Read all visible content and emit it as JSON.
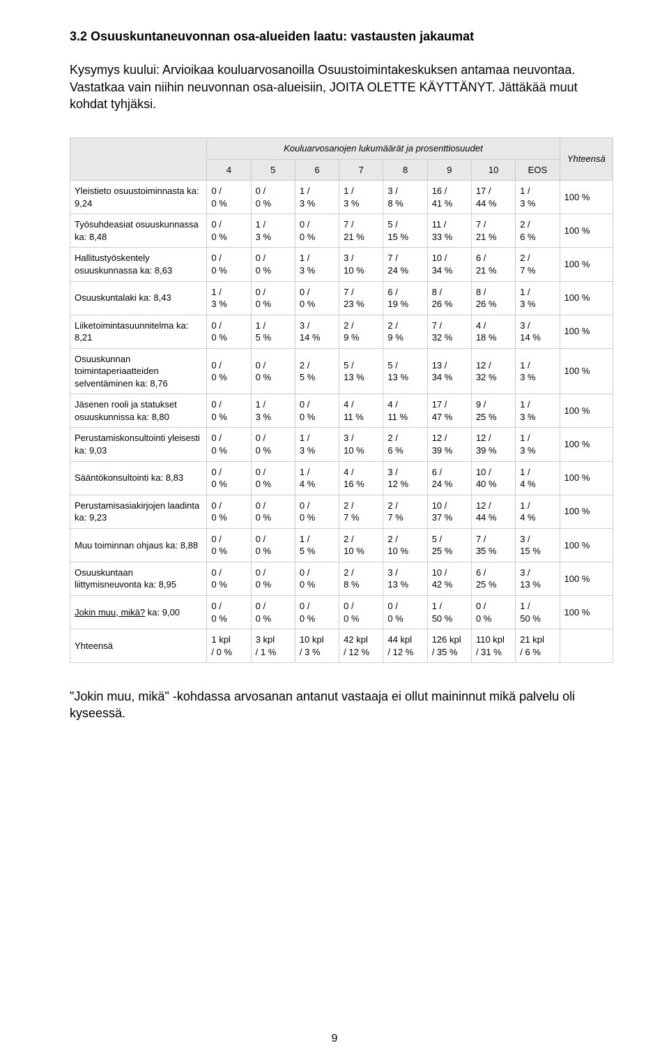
{
  "section_title": "3.2 Osuuskuntaneuvonnan osa-alueiden laatu: vastausten jakaumat",
  "intro": "Kysymys kuului: Arvioikaa kouluarvosanoilla Osuustoimintakeskuksen antamaa neuvontaa. Vastatkaa vain niihin neuvonnan osa-alueisiin, JOITA OLETTE KÄYTTÄNYT. Jättäkää muut kohdat tyhjäksi.",
  "table": {
    "group_header": "Kouluarvosanojen lukumäärät ja prosenttiosuudet",
    "total_header": "Yhteensä",
    "columns": [
      "4",
      "5",
      "6",
      "7",
      "8",
      "9",
      "10",
      "EOS"
    ],
    "rows": [
      {
        "label": "Yleistieto osuustoiminnasta ka: 9,24",
        "cells": [
          "0 /\n0 %",
          "0 /\n0 %",
          "1 /\n3 %",
          "1 /\n3 %",
          "3 /\n8 %",
          "16 /\n41 %",
          "17 /\n44 %",
          "1 /\n3 %"
        ],
        "total": "100 %"
      },
      {
        "label": "Työsuhdeasiat osuuskunnassa ka: 8,48",
        "cells": [
          "0 /\n0 %",
          "1 /\n3 %",
          "0 /\n0 %",
          "7 /\n21 %",
          "5 /\n15 %",
          "11 /\n33 %",
          "7 /\n21 %",
          "2 /\n6 %"
        ],
        "total": "100 %"
      },
      {
        "label": "Hallitustyöskentely osuuskunnassa ka: 8,63",
        "cells": [
          "0 /\n0 %",
          "0 /\n0 %",
          "1 /\n3 %",
          "3 /\n10 %",
          "7 /\n24 %",
          "10 /\n34 %",
          "6 /\n21 %",
          "2 /\n7 %"
        ],
        "total": "100 %"
      },
      {
        "label": "Osuuskuntalaki ka: 8,43",
        "cells": [
          "1 /\n3 %",
          "0 /\n0 %",
          "0 /\n0 %",
          "7 /\n23 %",
          "6 /\n19 %",
          "8 /\n26 %",
          "8 /\n26 %",
          "1 /\n3 %"
        ],
        "total": "100 %"
      },
      {
        "label": "Liiketoimintasuunnitelma ka: 8,21",
        "cells": [
          "0 /\n0 %",
          "1 /\n5 %",
          "3 /\n14 %",
          "2 /\n9 %",
          "2 /\n9 %",
          "7 /\n32 %",
          "4 /\n18 %",
          "3 /\n14 %"
        ],
        "total": "100 %"
      },
      {
        "label": "Osuuskunnan toimintaperiaatteiden selventäminen ka: 8,76",
        "cells": [
          "0 /\n0 %",
          "0 /\n0 %",
          "2 /\n5 %",
          "5 /\n13 %",
          "5 /\n13 %",
          "13 /\n34 %",
          "12 /\n32 %",
          "1 /\n3 %"
        ],
        "total": "100 %"
      },
      {
        "label": "Jäsenen rooli ja statukset osuuskunnissa ka: 8,80",
        "cells": [
          "0 /\n0 %",
          "1 /\n3 %",
          "0 /\n0 %",
          "4 /\n11 %",
          "4 /\n11 %",
          "17 /\n47 %",
          "9 /\n25 %",
          "1 /\n3 %"
        ],
        "total": "100 %"
      },
      {
        "label": "Perustamiskonsultointi yleisesti ka: 9,03",
        "cells": [
          "0 /\n0 %",
          "0 /\n0 %",
          "1 /\n3 %",
          "3 /\n10 %",
          "2 /\n6 %",
          "12 /\n39 %",
          "12 /\n39 %",
          "1 /\n3 %"
        ],
        "total": "100 %"
      },
      {
        "label": "Sääntökonsultointi ka: 8,83",
        "cells": [
          "0 /\n0 %",
          "0 /\n0 %",
          "1 /\n4 %",
          "4 /\n16 %",
          "3 /\n12 %",
          "6 /\n24 %",
          "10 /\n40 %",
          "1 /\n4 %"
        ],
        "total": "100 %"
      },
      {
        "label": "Perustamisasiakirjojen laadinta ka: 9,23",
        "cells": [
          "0 /\n0 %",
          "0 /\n0 %",
          "0 /\n0 %",
          "2 /\n7 %",
          "2 /\n7 %",
          "10 /\n37 %",
          "12 /\n44 %",
          "1 /\n4 %"
        ],
        "total": "100 %"
      },
      {
        "label": "Muu toiminnan ohjaus ka: 8,88",
        "cells": [
          "0 /\n0 %",
          "0 /\n0 %",
          "1 /\n5 %",
          "2 /\n10 %",
          "2 /\n10 %",
          "5 /\n25 %",
          "7 /\n35 %",
          "3 /\n15 %"
        ],
        "total": "100 %"
      },
      {
        "label": "Osuuskuntaan liittymisneuvonta ka: 8,95",
        "cells": [
          "0 /\n0 %",
          "0 /\n0 %",
          "0 /\n0 %",
          "2 /\n8 %",
          "3 /\n13 %",
          "10 /\n42 %",
          "6 /\n25 %",
          "3 /\n13 %"
        ],
        "total": "100 %"
      },
      {
        "label_pre": "Jokin muu, mikä?",
        "label_post": " ka: 9,00",
        "underline": true,
        "cells": [
          "0 /\n0 %",
          "0 /\n0 %",
          "0 /\n0 %",
          "0 /\n0 %",
          "0 /\n0 %",
          "1 /\n50 %",
          "0 /\n0 %",
          "1 /\n50 %"
        ],
        "total": "100 %"
      }
    ],
    "summary": {
      "label": "Yhteensä",
      "cells": [
        "1 kpl\n/ 0 %",
        "3 kpl\n/ 1 %",
        "10 kpl\n/ 3 %",
        "42 kpl\n/ 12 %",
        "44 kpl\n/ 12 %",
        "126 kpl\n/ 35 %",
        "110 kpl\n/ 31 %",
        "21 kpl\n/ 6 %"
      ],
      "total": ""
    }
  },
  "footnote": "\"Jokin muu, mikä\" -kohdassa arvosanan antanut vastaaja ei ollut maininnut mikä palvelu oli kyseessä.",
  "page_number": "9",
  "colors": {
    "header_bg": "#e8e8e8",
    "border": "#cccccc",
    "text": "#000000",
    "background": "#ffffff"
  }
}
